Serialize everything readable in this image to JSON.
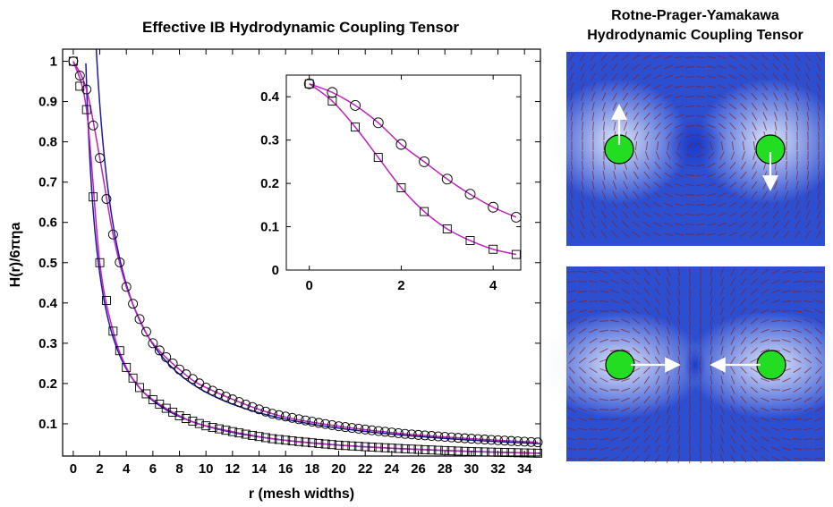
{
  "left_title": "Effective IB Hydrodynamic Coupling Tensor",
  "right_title_line1": "Rotne-Prager-Yamakawa",
  "right_title_line2": "Hydrodynamic Coupling Tensor",
  "colors": {
    "rpy_curve": "#1a1aa8",
    "ib_fit_curve": "#c020c0",
    "markers": "#000000",
    "field_dark": "#2c4fd2",
    "field_light": "#e8eefc",
    "particle": "#22dd22",
    "arrow": "#ffffff",
    "field_lines": "#8b1a1a"
  },
  "chart_data": [
    {
      "type": "line",
      "role": "main",
      "xlabel": "r (mesh widths)",
      "ylabel": "H(r)/6πηa",
      "xlim": [
        -0.8,
        35.2
      ],
      "ylim": [
        0.02,
        1.03
      ],
      "xticks": [
        0,
        2,
        4,
        6,
        8,
        10,
        12,
        14,
        16,
        18,
        20,
        22,
        24,
        26,
        28,
        30,
        32,
        34
      ],
      "yticks": [
        0.1,
        0.2,
        0.3,
        0.4,
        0.5,
        0.6,
        0.7,
        0.8,
        0.9,
        1
      ],
      "series": [
        {
          "marker": "circle",
          "curve": "rpy_parallel",
          "x": [
            0,
            1,
            2,
            3,
            4,
            5,
            6,
            8,
            10,
            15,
            20,
            25,
            30,
            35
          ],
          "y": [
            1.0,
            0.93,
            0.76,
            0.57,
            0.44,
            0.36,
            0.3,
            0.235,
            0.19,
            0.125,
            0.094,
            0.075,
            0.063,
            0.054
          ]
        },
        {
          "marker": "square",
          "curve": "rpy_perpendicular",
          "x": [
            0,
            1,
            2,
            3,
            4,
            5,
            6,
            8,
            10,
            15,
            20,
            25,
            30,
            35
          ],
          "y": [
            1.0,
            0.88,
            0.5,
            0.33,
            0.24,
            0.19,
            0.16,
            0.12,
            0.095,
            0.063,
            0.047,
            0.038,
            0.031,
            0.027
          ]
        }
      ]
    },
    {
      "type": "line",
      "role": "inset",
      "xlim": [
        -0.5,
        4.6
      ],
      "ylim": [
        0,
        0.45
      ],
      "xticks": [
        0,
        2,
        4
      ],
      "yticks": [
        0,
        0.1,
        0.2,
        0.3,
        0.4
      ],
      "series": [
        {
          "marker": "circle",
          "x": [
            0,
            0.5,
            1,
            1.5,
            2,
            2.5,
            3,
            3.5,
            4,
            4.5
          ],
          "y": [
            0.43,
            0.41,
            0.38,
            0.34,
            0.29,
            0.25,
            0.21,
            0.175,
            0.145,
            0.122
          ]
        },
        {
          "marker": "square",
          "x": [
            0,
            0.5,
            1,
            1.5,
            2,
            2.5,
            3,
            3.5,
            4,
            4.5
          ],
          "y": [
            0.43,
            0.39,
            0.33,
            0.26,
            0.19,
            0.135,
            0.095,
            0.068,
            0.048,
            0.036
          ]
        }
      ]
    }
  ]
}
